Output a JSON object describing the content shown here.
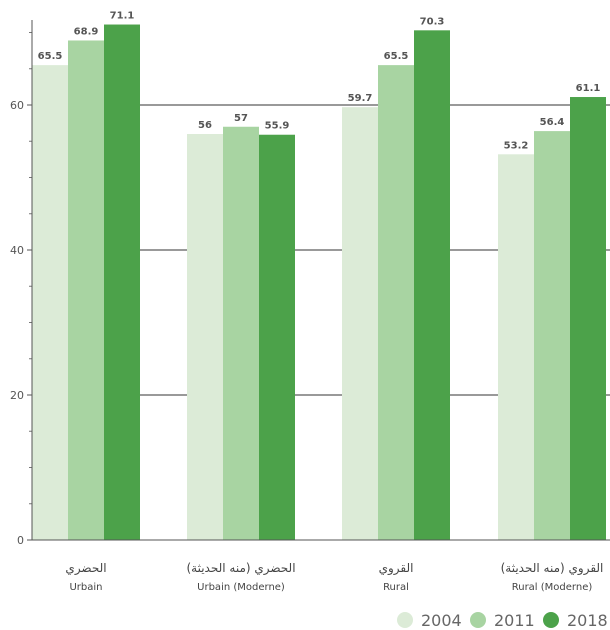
{
  "chart_data": {
    "type": "bar",
    "categories": [
      {
        "ar": "الحضري",
        "fr": "Urbain"
      },
      {
        "ar": "الحضري (منه الحديثة)",
        "fr": "Urbain (Moderne)"
      },
      {
        "ar": "القروي",
        "fr": "Rural"
      },
      {
        "ar": "القروي (منه الحديثة)",
        "fr": "Rural (Moderne)"
      }
    ],
    "series": [
      {
        "name": "2004",
        "color": "#dcebd7",
        "values": [
          65.5,
          56,
          59.7,
          53.2
        ],
        "labels": [
          "65.5",
          "56",
          "59.7",
          "53.2"
        ]
      },
      {
        "name": "2011",
        "color": "#a8d4a2",
        "values": [
          68.9,
          57,
          65.5,
          56.4
        ],
        "labels": [
          "68.9",
          "57",
          "65.5",
          "56.4"
        ]
      },
      {
        "name": "2018",
        "color": "#4ca24a",
        "values": [
          71.1,
          55.9,
          70.3,
          61.1
        ],
        "labels": [
          "71.1",
          "55.9",
          "70.3",
          "61.1"
        ]
      }
    ],
    "yticks": [
      "0",
      "20",
      "40",
      "60"
    ],
    "ylim": [
      0,
      72
    ],
    "grid": true,
    "legend_position": "bottom-right",
    "xlabel": "",
    "ylabel": "",
    "title": ""
  }
}
